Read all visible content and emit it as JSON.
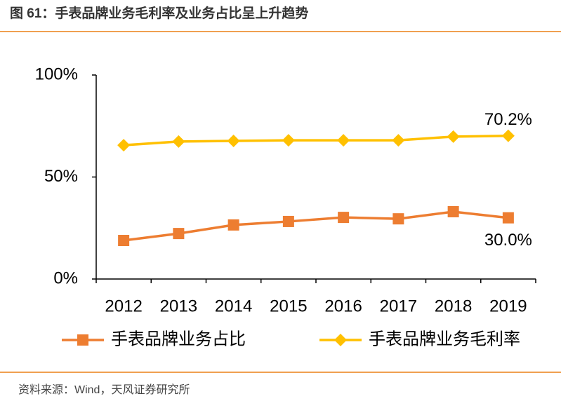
{
  "chart_data": {
    "type": "line",
    "title": "图 61：手表品牌业务毛利率及业务占比呈上升趋势",
    "source": "资料来源：Wind，天风证券研究所",
    "categories": [
      "2012",
      "2013",
      "2014",
      "2015",
      "2016",
      "2017",
      "2018",
      "2019"
    ],
    "series": [
      {
        "name": "手表品牌业务占比",
        "color": "#ED7D31",
        "marker": "square",
        "values": [
          18.9,
          22.3,
          26.5,
          28.2,
          30.2,
          29.5,
          33.0,
          30.0
        ],
        "value_labels": [
          null,
          null,
          null,
          null,
          null,
          null,
          null,
          "30.0%"
        ]
      },
      {
        "name": "手表品牌业务毛利率",
        "color": "#FFC000",
        "marker": "diamond",
        "values": [
          65.6,
          67.4,
          67.7,
          68.0,
          68.0,
          68.0,
          69.8,
          70.2
        ],
        "value_labels": [
          null,
          null,
          null,
          null,
          null,
          null,
          null,
          "70.2%"
        ]
      }
    ],
    "ylim": [
      0,
      100
    ],
    "yticks": [
      {
        "value": 0,
        "label": "0%"
      },
      {
        "value": 50,
        "label": "50%"
      },
      {
        "value": 100,
        "label": "100%"
      }
    ],
    "grid": false
  }
}
